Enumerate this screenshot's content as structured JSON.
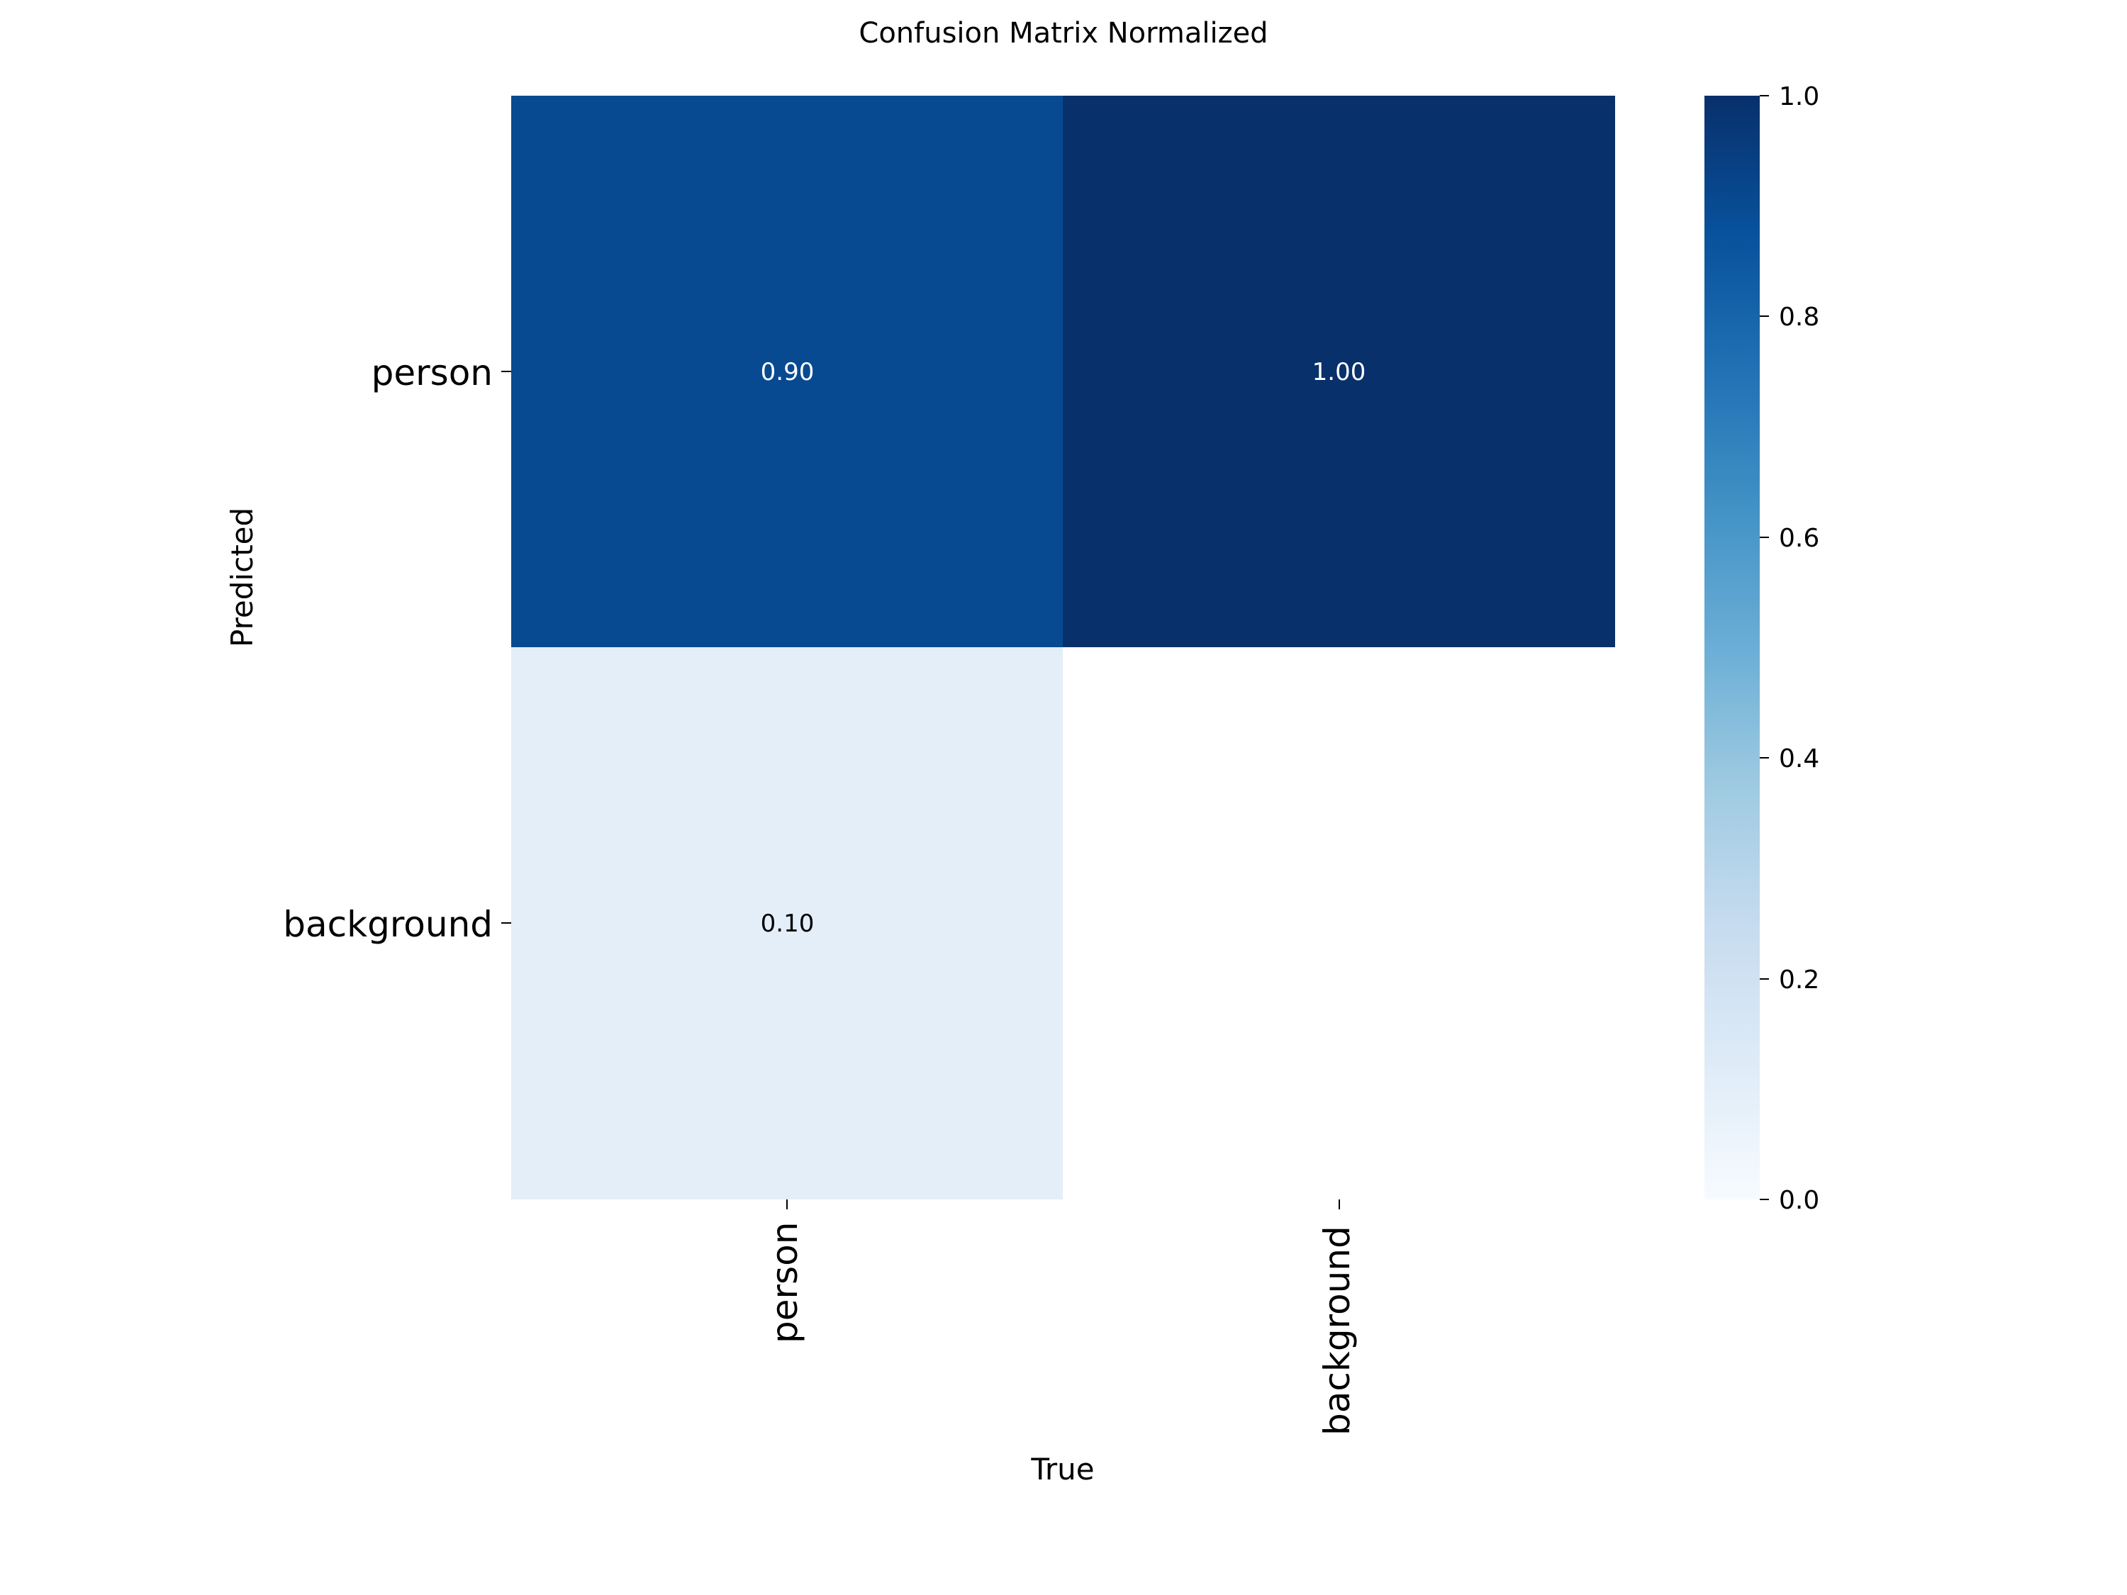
{
  "chart_data": {
    "type": "heatmap",
    "title": "Confusion Matrix Normalized",
    "xlabel": "True",
    "ylabel": "Predicted",
    "x_categories": [
      "person",
      "background"
    ],
    "y_categories": [
      "person",
      "background"
    ],
    "matrix": [
      [
        0.9,
        1.0
      ],
      [
        0.1,
        null
      ]
    ],
    "annotations": [
      [
        "0.90",
        "1.00"
      ],
      [
        "0.10",
        ""
      ]
    ],
    "colormap": "Blues",
    "colorbar": {
      "range": [
        0.0,
        1.0
      ],
      "ticks": [
        "0.0",
        "0.2",
        "0.4",
        "0.6",
        "0.8",
        "1.0"
      ]
    },
    "cell_colors": [
      [
        "#084a91",
        "#08306b"
      ],
      [
        "#e3eef8",
        "#ffffff"
      ]
    ],
    "annotation_colors": [
      [
        "#ffffff",
        "#ffffff"
      ],
      [
        "#000000",
        "#000000"
      ]
    ]
  }
}
